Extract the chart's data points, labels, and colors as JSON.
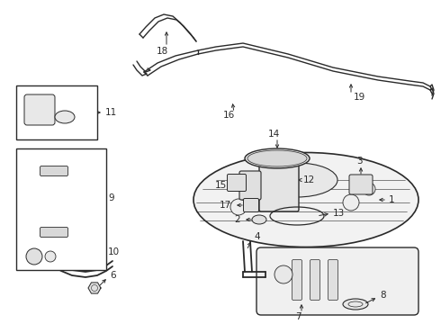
{
  "bg": "#ffffff",
  "lc": "#2a2a2a",
  "figw": 4.9,
  "figh": 3.6,
  "dpi": 100,
  "fs": 7.5
}
